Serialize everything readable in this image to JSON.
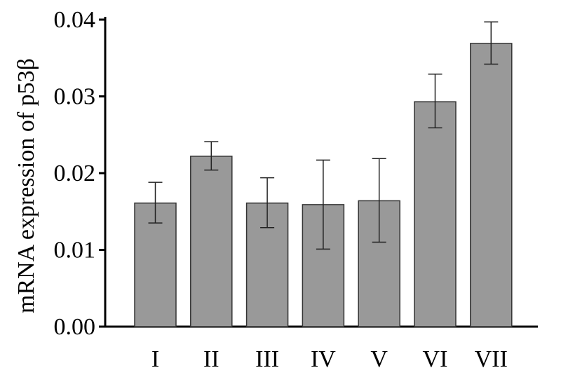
{
  "chart_data": {
    "type": "bar",
    "title": "",
    "xlabel": "",
    "ylabel": "mRNA expression of p53β",
    "ylim": [
      0,
      0.04
    ],
    "yticks": [
      "0.00",
      "0.01",
      "0.02",
      "0.03",
      "0.04"
    ],
    "categories": [
      "I",
      "II",
      "III",
      "IV",
      "V",
      "VI",
      "VII"
    ],
    "values": [
      0.0161,
      0.0222,
      0.0161,
      0.0159,
      0.0164,
      0.0293,
      0.0369
    ],
    "error_upper": [
      0.0188,
      0.0241,
      0.0194,
      0.0217,
      0.0219,
      0.0329,
      0.0397
    ],
    "error_lower": [
      0.0135,
      0.0204,
      0.0129,
      0.0101,
      0.011,
      0.0259,
      0.0342
    ],
    "bar_color": "#999999",
    "bar_edge_color": "#333333",
    "grid": false,
    "legend": "none"
  }
}
